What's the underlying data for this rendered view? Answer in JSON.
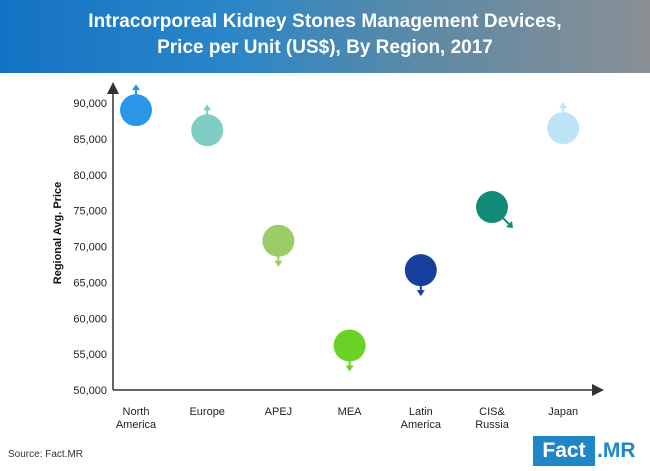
{
  "header": {
    "title_line1": "Intracorporeal Kidney Stones Management Devices,",
    "title_line2": "Price per Unit (US$), By Region, 2017"
  },
  "chart_data": {
    "type": "scatter",
    "title": "Intracorporeal Kidney Stones Management Devices, Price per Unit (US$), By Region, 2017",
    "ylabel": "Regional Avg. Price",
    "ylim": [
      50000,
      90000
    ],
    "yticks": [
      90000,
      85000,
      80000,
      75000,
      70000,
      65000,
      60000,
      55000,
      50000
    ],
    "ytick_labels": [
      "90,000",
      "85,000",
      "80,000",
      "75,000",
      "70,000",
      "65,000",
      "60,000",
      "55,000",
      "50,000"
    ],
    "grid": false,
    "points": [
      {
        "category": [
          "North",
          "America"
        ],
        "value": 89000,
        "color": "#2b97e8",
        "arrow": "up"
      },
      {
        "category": [
          "Europe"
        ],
        "value": 86200,
        "color": "#7fcdc5",
        "arrow": "up"
      },
      {
        "category": [
          "APEJ"
        ],
        "value": 70800,
        "color": "#9ccc65",
        "arrow": "down"
      },
      {
        "category": [
          "MEA"
        ],
        "value": 56200,
        "color": "#6ad224",
        "arrow": "down"
      },
      {
        "category": [
          "Latin",
          "America"
        ],
        "value": 66700,
        "color": "#173f9e",
        "arrow": "down"
      },
      {
        "category": [
          "CIS&",
          "Russia"
        ],
        "value": 75500,
        "color": "#138a78",
        "arrow": "down-right"
      },
      {
        "category": [
          "Japan"
        ],
        "value": 86500,
        "color": "#bfe3f6",
        "arrow": "up"
      }
    ]
  },
  "footer": {
    "source": "Source: Fact.MR",
    "logo_left": "Fact",
    "logo_right": ".MR"
  }
}
